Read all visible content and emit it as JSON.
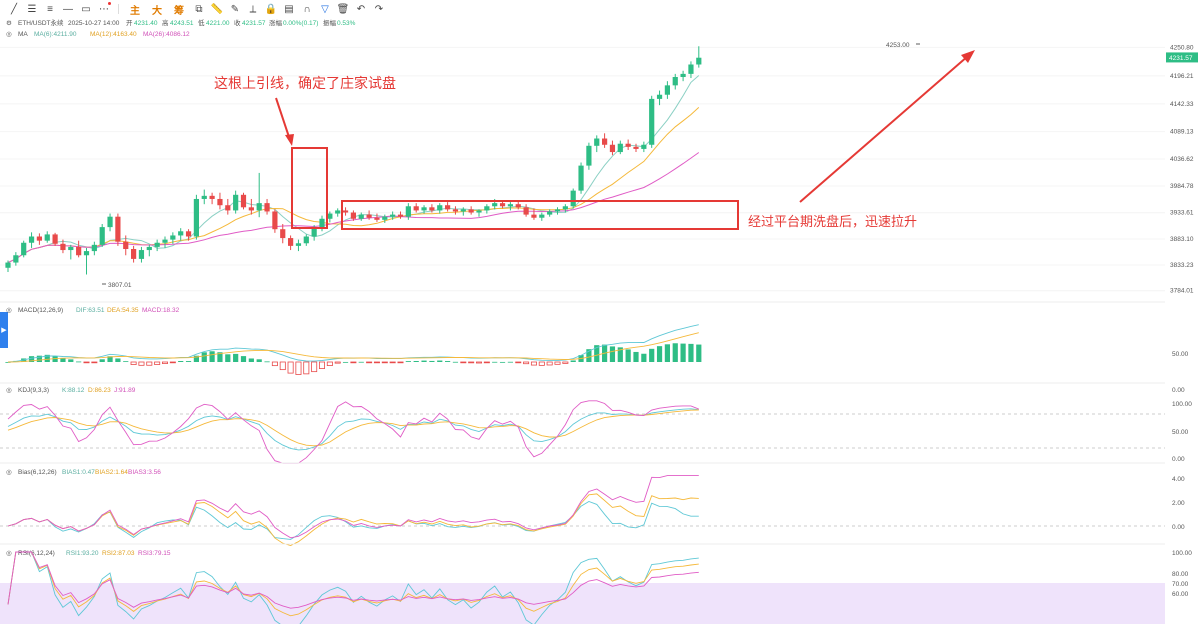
{
  "toolbar": {
    "tools": [
      "trendline-icon",
      "horizontal-lines-icon",
      "parallel-channel-icon",
      "horizontal-ray-icon",
      "rectangle-icon",
      "more-dots-icon"
    ],
    "modes": [
      "主",
      "大",
      "筹"
    ],
    "right_tools": [
      "copy-icon",
      "ruler-icon",
      "pencil-icon",
      "measure-icon",
      "lock-icon",
      "layers-icon",
      "magnet-icon",
      "filter-icon",
      "trash-icon",
      "undo-icon",
      "redo-icon"
    ]
  },
  "header": {
    "symbol": "ETH/USDT永续",
    "datetime": "2025-10-27 14:00",
    "open_label": "开",
    "open": "4231.40",
    "high_label": "高",
    "high": "4243.51",
    "low_label": "低",
    "low": "4221.00",
    "close_label": "收",
    "close": "4231.57",
    "change_label": "涨幅",
    "change": "0.00%(0.17)",
    "amp_label": "振幅",
    "amp": "0.53%"
  },
  "ma": {
    "label": "MA",
    "ma6": "MA(6):4211.90",
    "ma12": "MA(12):4163.40",
    "ma26": "MA(26):4086.12"
  },
  "macd": {
    "label": "MACD(12,26,9)",
    "dif": "DIF:63.51",
    "dea": "DEA:54.35",
    "macd": "MACD:18.32"
  },
  "kdj": {
    "label": "KDJ(9,3,3)",
    "k": "K:88.12",
    "d": "D:86.23",
    "j": "J:91.89"
  },
  "bias": {
    "label": "Bias(6,12,26)",
    "b1": "BIAS1:0.47",
    "b2": "BIAS2:1.64",
    "b3": "BIAS3:3.56"
  },
  "rsi": {
    "label": "RSI(6,12,24)",
    "r1": "RSI1:93.20",
    "r2": "RSI2:87.03",
    "r3": "RSI3:79.15"
  },
  "annotations": {
    "top_wick": "这根上引线，确定了庄家试盘",
    "platform": "经过平台期洗盘后，迅速拉升",
    "high_marker": "4253.00",
    "low_marker": "3807.01"
  },
  "colors": {
    "up": "#2ebd85",
    "down": "#e84a4a",
    "ma6": "#8bd0c4",
    "ma12": "#f5b93b",
    "ma26": "#e05cc6",
    "annot": "#e53935",
    "price_tag": "#2ebd85"
  },
  "chart_data": {
    "type": "candlestick",
    "price_axis": {
      "ticks": [
        "4250.80",
        "4196.21",
        "4142.33",
        "4089.13",
        "4036.62",
        "3984.78",
        "3933.61",
        "3883.10",
        "3833.23",
        "3784.01"
      ],
      "current": "4231.57"
    },
    "macd_axis": {
      "ticks": [
        "50.00",
        "0.00"
      ]
    },
    "kdj_axis": {
      "ticks": [
        "100.00",
        "50.00",
        "0.00"
      ]
    },
    "bias_axis": {
      "ticks": [
        "4.00",
        "2.00",
        "0.00"
      ]
    },
    "rsi_axis": {
      "ticks": [
        "100.00",
        "80.00",
        "70.00",
        "60.00"
      ]
    },
    "candles": [
      [
        3828,
        3842,
        3820,
        3838
      ],
      [
        3838,
        3858,
        3832,
        3852
      ],
      [
        3852,
        3880,
        3848,
        3876
      ],
      [
        3876,
        3896,
        3866,
        3888
      ],
      [
        3888,
        3894,
        3872,
        3880
      ],
      [
        3880,
        3898,
        3876,
        3892
      ],
      [
        3892,
        3895,
        3870,
        3874
      ],
      [
        3874,
        3882,
        3856,
        3862
      ],
      [
        3862,
        3872,
        3844,
        3868
      ],
      [
        3868,
        3880,
        3848,
        3852
      ],
      [
        3852,
        3866,
        3815,
        3860
      ],
      [
        3860,
        3878,
        3852,
        3872
      ],
      [
        3872,
        3912,
        3868,
        3906
      ],
      [
        3906,
        3932,
        3898,
        3926
      ],
      [
        3926,
        3932,
        3870,
        3878
      ],
      [
        3878,
        3890,
        3852,
        3864
      ],
      [
        3864,
        3870,
        3838,
        3845
      ],
      [
        3845,
        3868,
        3838,
        3862
      ],
      [
        3862,
        3872,
        3850,
        3868
      ],
      [
        3868,
        3882,
        3860,
        3876
      ],
      [
        3876,
        3888,
        3866,
        3882
      ],
      [
        3882,
        3896,
        3874,
        3890
      ],
      [
        3890,
        3904,
        3880,
        3898
      ],
      [
        3898,
        3902,
        3880,
        3888
      ],
      [
        3888,
        3968,
        3882,
        3960
      ],
      [
        3960,
        3978,
        3950,
        3966
      ],
      [
        3966,
        3972,
        3950,
        3960
      ],
      [
        3960,
        3972,
        3940,
        3948
      ],
      [
        3948,
        3960,
        3930,
        3938
      ],
      [
        3938,
        3976,
        3932,
        3968
      ],
      [
        3968,
        3972,
        3940,
        3944
      ],
      [
        3944,
        3960,
        3930,
        3938
      ],
      [
        3938,
        4010,
        3925,
        3952
      ],
      [
        3952,
        3960,
        3930,
        3936
      ],
      [
        3936,
        3940,
        3895,
        3902
      ],
      [
        3902,
        3912,
        3875,
        3885
      ],
      [
        3885,
        3890,
        3862,
        3870
      ],
      [
        3870,
        3882,
        3860,
        3875
      ],
      [
        3875,
        3892,
        3870,
        3888
      ],
      [
        3888,
        3910,
        3880,
        3905
      ],
      [
        3905,
        3928,
        3898,
        3922
      ],
      [
        3922,
        3936,
        3915,
        3932
      ],
      [
        3932,
        3942,
        3926,
        3938
      ],
      [
        3938,
        3944,
        3928,
        3934
      ],
      [
        3934,
        3938,
        3918,
        3922
      ],
      [
        3922,
        3934,
        3918,
        3930
      ],
      [
        3930,
        3938,
        3920,
        3924
      ],
      [
        3924,
        3932,
        3916,
        3920
      ],
      [
        3920,
        3930,
        3914,
        3926
      ],
      [
        3926,
        3936,
        3920,
        3930
      ],
      [
        3930,
        3936,
        3922,
        3926
      ],
      [
        3926,
        3952,
        3920,
        3946
      ],
      [
        3946,
        3952,
        3934,
        3938
      ],
      [
        3938,
        3948,
        3932,
        3944
      ],
      [
        3944,
        3950,
        3934,
        3938
      ],
      [
        3938,
        3952,
        3932,
        3948
      ],
      [
        3948,
        3954,
        3936,
        3940
      ],
      [
        3940,
        3946,
        3930,
        3936
      ],
      [
        3936,
        3944,
        3928,
        3940
      ],
      [
        3940,
        3946,
        3930,
        3934
      ],
      [
        3934,
        3940,
        3926,
        3938
      ],
      [
        3938,
        3950,
        3932,
        3946
      ],
      [
        3946,
        3960,
        3940,
        3952
      ],
      [
        3952,
        3958,
        3942,
        3946
      ],
      [
        3946,
        3954,
        3938,
        3950
      ],
      [
        3950,
        3958,
        3940,
        3944
      ],
      [
        3944,
        3950,
        3926,
        3930
      ],
      [
        3930,
        3942,
        3920,
        3924
      ],
      [
        3924,
        3934,
        3918,
        3930
      ],
      [
        3930,
        3940,
        3926,
        3936
      ],
      [
        3936,
        3944,
        3930,
        3940
      ],
      [
        3940,
        3950,
        3934,
        3946
      ],
      [
        3946,
        3980,
        3942,
        3976
      ],
      [
        3976,
        4030,
        3970,
        4024
      ],
      [
        4024,
        4068,
        4016,
        4062
      ],
      [
        4062,
        4082,
        4050,
        4076
      ],
      [
        4076,
        4086,
        4058,
        4064
      ],
      [
        4064,
        4072,
        4044,
        4050
      ],
      [
        4050,
        4072,
        4046,
        4066
      ],
      [
        4066,
        4074,
        4054,
        4060
      ],
      [
        4060,
        4066,
        4050,
        4056
      ],
      [
        4056,
        4070,
        4050,
        4064
      ],
      [
        4064,
        4158,
        4058,
        4152
      ],
      [
        4152,
        4168,
        4140,
        4160
      ],
      [
        4160,
        4186,
        4152,
        4178
      ],
      [
        4178,
        4200,
        4170,
        4194
      ],
      [
        4194,
        4206,
        4186,
        4200
      ],
      [
        4200,
        4224,
        4192,
        4218
      ],
      [
        4218,
        4253,
        4212,
        4231
      ]
    ]
  }
}
